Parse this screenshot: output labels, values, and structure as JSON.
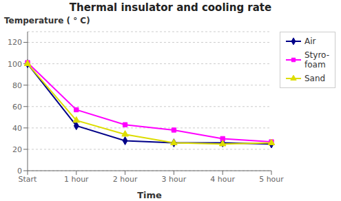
{
  "chart_data": {
    "type": "line",
    "title": "Thermal insulator and cooling rate",
    "x_label": "Time",
    "y_label": "Temperature ( ° C)",
    "categories": [
      "Start",
      "1 hour",
      "2 hour",
      "3 hour",
      "4 hour",
      "5 hour"
    ],
    "series": [
      {
        "name": "Air",
        "color": "#000088",
        "marker": "diamond",
        "values": [
          100,
          42,
          28,
          26,
          26,
          25
        ]
      },
      {
        "name": "Styro-\nfoam",
        "color": "#ff00ff",
        "marker": "square",
        "values": [
          101,
          57,
          43,
          38,
          30,
          27
        ]
      },
      {
        "name": "Sand",
        "color": "#dddd00",
        "marker": "triangle",
        "values": [
          100,
          47,
          34,
          26,
          25,
          26
        ]
      }
    ],
    "ylim": [
      0,
      130
    ],
    "yticks": [
      0,
      20,
      40,
      60,
      80,
      100,
      120
    ],
    "grid": true,
    "legend": "right"
  }
}
